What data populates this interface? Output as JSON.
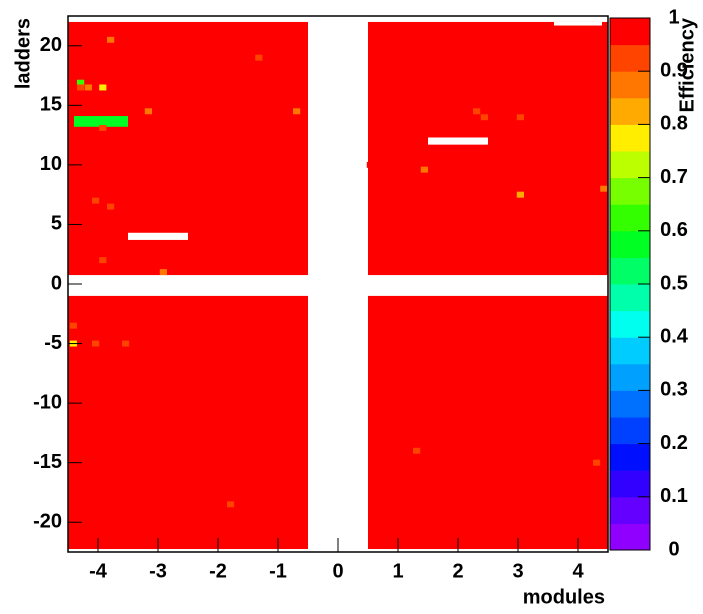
{
  "chart_data": {
    "type": "heatmap",
    "x_label": "modules",
    "y_label": "ladders",
    "z_label": "Efficiency",
    "xlim": [
      -4.5,
      4.5
    ],
    "xticks": [
      -4,
      -3,
      -2,
      -1,
      0,
      1,
      2,
      3,
      4
    ],
    "ylim": [
      -22.5,
      22.5
    ],
    "yticks": [
      -20,
      -15,
      -10,
      -5,
      0,
      5,
      10,
      15,
      20
    ],
    "zlim": [
      0,
      1
    ],
    "zticks": [
      0,
      0.1,
      0.2,
      0.3,
      0.4,
      0.5,
      0.6,
      0.7,
      0.8,
      0.9,
      1
    ],
    "palette": [
      "#8f00ff",
      "#6400ff",
      "#3200ff",
      "#0010ff",
      "#0040ff",
      "#0070ff",
      "#00a0ff",
      "#00ccff",
      "#00ffee",
      "#00ffaa",
      "#00ff66",
      "#00ff22",
      "#33ff00",
      "#77ff00",
      "#bbff00",
      "#ffee00",
      "#ffaa00",
      "#ff7700",
      "#ff4400",
      "#ff0000"
    ],
    "regions": [
      {
        "x": [
          -4.5,
          -0.5
        ],
        "y": [
          0.75,
          22
        ],
        "value": 1
      },
      {
        "x": [
          0.5,
          4.5
        ],
        "y": [
          0.75,
          22
        ],
        "value": 1
      },
      {
        "x": [
          -4.5,
          -0.5
        ],
        "y": [
          -22.25,
          -1
        ],
        "value": 1
      },
      {
        "x": [
          0.5,
          4.5
        ],
        "y": [
          -22.25,
          -1
        ],
        "value": 1
      },
      {
        "x": [
          -4.4,
          -3.5
        ],
        "y": [
          13.2,
          14.1
        ],
        "value": 0.55
      }
    ],
    "empty": [
      {
        "x": [
          -3.5,
          -2.5
        ],
        "y": [
          3.7,
          4.3
        ]
      },
      {
        "x": [
          1.5,
          2.5
        ],
        "y": [
          11.7,
          12.3
        ]
      },
      {
        "x": [
          3.6,
          4.4
        ],
        "y": [
          21.7,
          22
        ]
      }
    ],
    "cells": [
      {
        "x": -3.8,
        "y": 20.5,
        "value": 0.85
      },
      {
        "x": -4.3,
        "y": 16.9,
        "value": 0.6
      },
      {
        "x": -4.3,
        "y": 16.5,
        "value": 0.9
      },
      {
        "x": -4.17,
        "y": 16.5,
        "value": 0.85
      },
      {
        "x": -3.93,
        "y": 16.5,
        "value": 0.75
      },
      {
        "x": -3.17,
        "y": 14.5,
        "value": 0.85
      },
      {
        "x": -3.93,
        "y": 13.1,
        "value": 0.9
      },
      {
        "x": -1.33,
        "y": 19,
        "value": 0.9
      },
      {
        "x": -0.7,
        "y": 14.5,
        "value": 0.85
      },
      {
        "x": -4.05,
        "y": 7,
        "value": 0.9
      },
      {
        "x": -3.8,
        "y": 6.5,
        "value": 0.9
      },
      {
        "x": -3.93,
        "y": 2,
        "value": 0.9
      },
      {
        "x": -2.92,
        "y": 1,
        "value": 0.85
      },
      {
        "x": 0.53,
        "y": 10,
        "value": 0.95
      },
      {
        "x": 1.43,
        "y": 9.6,
        "value": 0.85
      },
      {
        "x": 2.3,
        "y": 14.5,
        "value": 0.9
      },
      {
        "x": 2.43,
        "y": 14,
        "value": 0.9
      },
      {
        "x": 3.03,
        "y": 14,
        "value": 0.9
      },
      {
        "x": 3.03,
        "y": 7.5,
        "value": 0.8
      },
      {
        "x": 4.42,
        "y": 8,
        "value": 0.85
      },
      {
        "x": -4.42,
        "y": -3.5,
        "value": 0.9
      },
      {
        "x": -4.42,
        "y": -5,
        "value": 0.75
      },
      {
        "x": -4.05,
        "y": -5,
        "value": 0.9
      },
      {
        "x": -3.55,
        "y": -5,
        "value": 0.9
      },
      {
        "x": 1.3,
        "y": -14,
        "value": 0.9
      },
      {
        "x": 4.3,
        "y": -15,
        "value": 0.9
      },
      {
        "x": -1.8,
        "y": -18.5,
        "value": 0.9
      }
    ]
  }
}
